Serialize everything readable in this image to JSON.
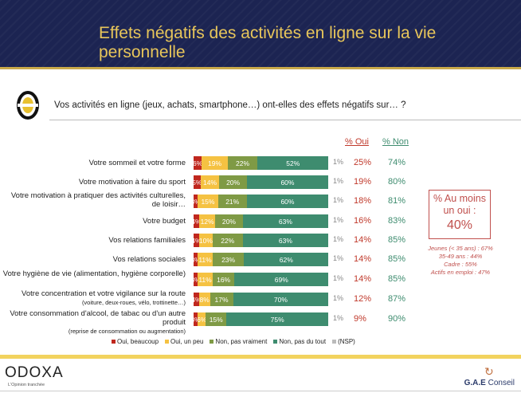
{
  "header": {
    "title": "Effets négatifs des activités en ligne sur la vie personnelle"
  },
  "question": "Vos activités en ligne (jeux, achats, smartphone…) ont-elles des effets négatifs sur… ?",
  "columns": {
    "oui": "% Oui",
    "non": "% Non"
  },
  "summary": {
    "title": "% Au moins un oui :",
    "value": "40%",
    "details": [
      "Jeunes (< 35 ans) : 67%",
      "35-49 ans : 44%",
      "Cadre : 55%",
      "Actifs en emploi : 47%"
    ]
  },
  "footer": {
    "brand": "ODOXA",
    "tagline": "L'Opinion tranchée",
    "partner_bold": "G.A.E",
    "partner": " Conseil"
  },
  "chart_data": {
    "type": "bar",
    "orientation": "horizontal",
    "stacked": true,
    "categories": [
      "Votre sommeil et votre forme",
      "Votre motivation à faire du sport",
      "Votre motivation à pratiquer des activités culturelles, de loisir…",
      "Votre budget",
      "Vos relations familiales",
      "Vos relations sociales",
      "Votre hygiène de vie (alimentation, hygiène corporelle)",
      "Votre concentration et votre vigilance sur la route",
      "Votre consommation d'alcool, de tabac ou d'un autre produit"
    ],
    "category_notes": [
      "",
      "",
      "",
      "",
      "",
      "",
      "",
      "(voiture, deux-roues, vélo, trottinette…)",
      "(reprise de consommation ou augmentation)"
    ],
    "series": [
      {
        "name": "Oui, beaucoup",
        "color": "#c0271e",
        "values": [
          6,
          5,
          3,
          4,
          4,
          3,
          3,
          4,
          3
        ]
      },
      {
        "name": "Oui, un peu",
        "color": "#f5c242",
        "values": [
          19,
          14,
          15,
          12,
          10,
          11,
          11,
          8,
          6
        ]
      },
      {
        "name": "Non, pas vraiment",
        "color": "#7f9a45",
        "values": [
          22,
          20,
          21,
          20,
          22,
          23,
          16,
          17,
          15
        ]
      },
      {
        "name": "Non, pas du tout",
        "color": "#3e8c6f",
        "values": [
          52,
          60,
          60,
          63,
          63,
          62,
          69,
          70,
          75
        ]
      },
      {
        "name": "(NSP)",
        "color": "#bbbbbb",
        "values": [
          1,
          1,
          1,
          1,
          1,
          1,
          1,
          1,
          1
        ]
      }
    ],
    "pct_oui": [
      "25%",
      "19%",
      "18%",
      "16%",
      "14%",
      "14%",
      "14%",
      "12%",
      "9%"
    ],
    "pct_non": [
      "74%",
      "80%",
      "81%",
      "83%",
      "85%",
      "85%",
      "85%",
      "87%",
      "90%"
    ],
    "legend_position": "bottom"
  }
}
